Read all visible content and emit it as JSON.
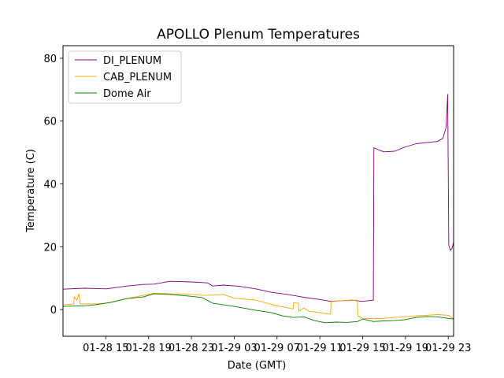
{
  "chart_data": {
    "type": "line",
    "title": "APOLLO Plenum Temperatures",
    "xlabel": "Date (GMT)",
    "ylabel": "Temperature (C)",
    "x_unit": "hours since 01-28 11:00 GMT",
    "xlim": [
      0,
      36.5
    ],
    "ylim": [
      -8.5,
      84
    ],
    "x_ticks": [
      {
        "x": 4,
        "label": "01-28 15"
      },
      {
        "x": 8,
        "label": "01-28 19"
      },
      {
        "x": 12,
        "label": "01-28 23"
      },
      {
        "x": 16,
        "label": "01-29 03"
      },
      {
        "x": 20,
        "label": "01-29 07"
      },
      {
        "x": 24,
        "label": "01-29 11"
      },
      {
        "x": 28,
        "label": "01-29 15"
      },
      {
        "x": 32,
        "label": "01-29 19"
      },
      {
        "x": 36,
        "label": "01-29 23"
      }
    ],
    "y_ticks": [
      {
        "y": 0,
        "label": "0"
      },
      {
        "y": 20,
        "label": "20"
      },
      {
        "y": 40,
        "label": "40"
      },
      {
        "y": 60,
        "label": "60"
      },
      {
        "y": 80,
        "label": "80"
      }
    ],
    "legend": {
      "placement": "top-left"
    },
    "series": [
      {
        "name": "DI_PLENUM",
        "color": "#800080",
        "x": [
          0,
          2,
          4,
          6,
          7.5,
          8.5,
          10,
          12,
          13.5,
          14,
          15,
          16.5,
          18,
          19.5,
          21,
          22.5,
          24,
          25,
          26,
          27,
          28,
          29,
          29.05,
          29.5,
          30,
          31,
          32,
          33,
          34,
          35,
          35.5,
          35.8,
          35.95,
          36.05,
          36.2,
          36.35,
          36.5
        ],
        "y": [
          6.5,
          6.8,
          6.6,
          7.5,
          8.0,
          8.1,
          9.0,
          8.8,
          8.5,
          7.5,
          7.8,
          7.4,
          6.6,
          5.5,
          4.8,
          3.9,
          3.2,
          2.6,
          2.8,
          3.0,
          2.6,
          3.0,
          51.5,
          50.8,
          50.2,
          50.4,
          51.8,
          52.8,
          53.2,
          53.5,
          54.5,
          58,
          68.5,
          20.5,
          18.8,
          19.5,
          21.5
        ]
      },
      {
        "name": "CAB_PLENUM",
        "color": "#ffa500",
        "x": [
          0,
          1,
          1.05,
          1.3,
          1.5,
          1.6,
          1.65,
          3,
          4,
          6,
          7.5,
          8.5,
          10,
          12,
          13,
          14,
          15,
          16,
          18,
          20,
          21.5,
          21.55,
          22,
          22.05,
          22.5,
          23,
          24,
          25,
          25.05,
          26,
          27,
          27.5,
          27.55,
          28,
          29,
          30,
          31,
          32,
          33,
          34,
          35,
          36,
          36.5
        ],
        "y": [
          1.5,
          1.8,
          4.0,
          3.0,
          5.0,
          2.0,
          1.8,
          1.8,
          2.0,
          3.5,
          4.5,
          5.2,
          5.0,
          4.8,
          4.5,
          4.6,
          4.8,
          3.6,
          3.0,
          1.2,
          0.2,
          2.2,
          2.0,
          -0.5,
          0.5,
          -0.5,
          -1.0,
          -1.5,
          2.5,
          2.8,
          2.9,
          3.0,
          -2.0,
          -2.8,
          -2.9,
          -2.8,
          -2.5,
          -2.3,
          -2.0,
          -1.8,
          -1.6,
          -1.8,
          -3.0
        ]
      },
      {
        "name": "Dome Air",
        "color": "#008000",
        "x": [
          0,
          2,
          3,
          4.5,
          6,
          7.5,
          8.5,
          10,
          12,
          13,
          14,
          16,
          18,
          19.5,
          20.5,
          21.5,
          22.5,
          23.5,
          24.5,
          25.5,
          26.5,
          27.5,
          28,
          29,
          30,
          31,
          32,
          33,
          34,
          35,
          36,
          36.5
        ],
        "y": [
          1.0,
          1.2,
          1.5,
          2.3,
          3.5,
          4.0,
          5.0,
          4.8,
          4.2,
          3.8,
          2.0,
          1.0,
          -0.2,
          -1.0,
          -2.0,
          -2.5,
          -2.3,
          -3.5,
          -4.2,
          -4.0,
          -4.1,
          -3.8,
          -3.0,
          -3.8,
          -3.6,
          -3.5,
          -3.2,
          -2.5,
          -2.2,
          -2.3,
          -2.8,
          -3.0
        ]
      }
    ]
  }
}
